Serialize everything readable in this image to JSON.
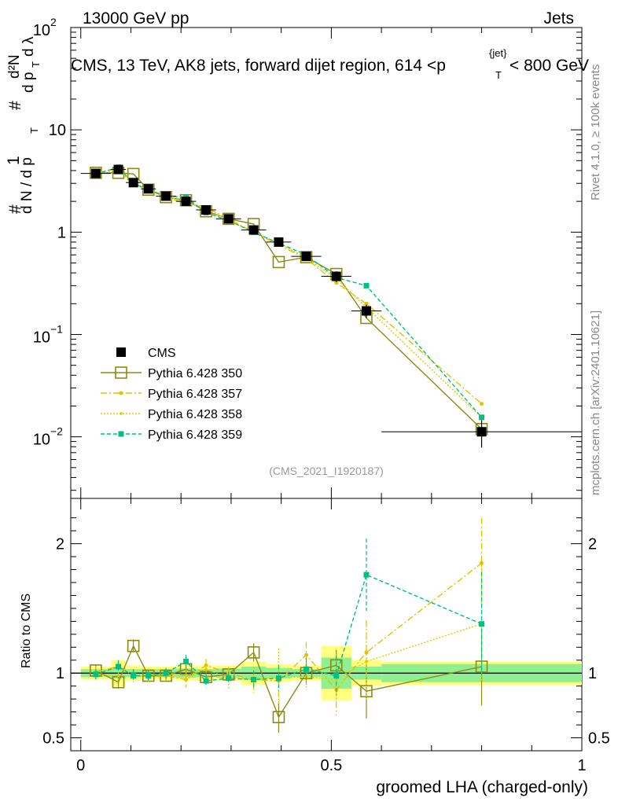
{
  "header": {
    "left": "13000 GeV pp",
    "right": "Jets"
  },
  "chart_data": [
    {
      "type": "line",
      "yscale": "log",
      "title": "CMS, 13 TeV, AK8 jets, forward dijet region, 614 <p_T^{jet}< 800 GeV",
      "title_parts": {
        "main": "CMS, 13 TeV, AK8 jets, forward dijet region, 614 <p",
        "sub": "T",
        "sup": "{jet}",
        "tail": "< 800 GeV"
      },
      "ylabel": "1 / (dN/dp_T) · d²N / (dp_T dλ)",
      "ylabel_parts": {
        "hash": "#",
        "one": "1",
        "dn": "d N / d p",
        "t": "T",
        "d2n": "d²N",
        "dp": "d p",
        "dl": "d λ"
      },
      "xlim": [
        -0.02,
        1.0
      ],
      "ylim": [
        0.0025,
        100
      ],
      "yticks": [
        {
          "v": 0.01,
          "base": "10",
          "exp": "−2"
        },
        {
          "v": 0.1,
          "base": "10",
          "exp": "−1"
        },
        {
          "v": 1,
          "label": "1"
        },
        {
          "v": 10,
          "label": "10"
        },
        {
          "v": 100,
          "base": "10",
          "exp": "2"
        }
      ],
      "x": [
        0.03,
        0.075,
        0.105,
        0.135,
        0.17,
        0.21,
        0.25,
        0.295,
        0.345,
        0.395,
        0.45,
        0.51,
        0.57,
        0.8
      ],
      "xerr": [
        0.03,
        0.015,
        0.015,
        0.015,
        0.02,
        0.02,
        0.02,
        0.025,
        0.025,
        0.025,
        0.03,
        0.03,
        0.03,
        0.2
      ],
      "series": [
        {
          "name": "CMS",
          "color": "#000000",
          "marker": "square-filled",
          "values": [
            3.75,
            4.1,
            3.05,
            2.65,
            2.25,
            2.0,
            1.65,
            1.35,
            1.05,
            0.8,
            0.58,
            0.37,
            0.17,
            0.0112
          ],
          "err_frac": [
            0.05,
            0.05,
            0.06,
            0.06,
            0.06,
            0.06,
            0.07,
            0.07,
            0.08,
            0.09,
            0.1,
            0.12,
            0.15,
            0.3
          ]
        },
        {
          "name": "Pythia 6.428 350",
          "color": "#8a8a14",
          "marker": "square-open",
          "dash": "",
          "values": [
            3.8,
            3.8,
            3.7,
            2.6,
            2.2,
            2.05,
            1.6,
            1.35,
            1.2,
            0.51,
            0.57,
            0.39,
            0.145,
            0.0119
          ]
        },
        {
          "name": "Pythia 6.428 357",
          "color": "#e6c000",
          "marker": "star",
          "dash": "8,3,2,3",
          "values": [
            3.8,
            4.2,
            3.0,
            2.55,
            2.2,
            1.9,
            1.75,
            1.35,
            1.0,
            0.75,
            0.55,
            0.32,
            0.2,
            0.021
          ]
        },
        {
          "name": "Pythia 6.428 358",
          "color": "#d2d200",
          "marker": "dot",
          "dash": "2,2",
          "values": [
            3.7,
            4.0,
            3.0,
            2.6,
            2.25,
            1.95,
            1.7,
            1.3,
            1.0,
            0.78,
            0.56,
            0.35,
            0.185,
            0.0155
          ]
        },
        {
          "name": "Pythia 6.428 359",
          "color": "#00c080",
          "marker": "square-small",
          "dash": "5,3",
          "values": [
            3.7,
            4.3,
            3.0,
            2.6,
            2.25,
            2.2,
            1.55,
            1.3,
            1.0,
            0.78,
            0.6,
            0.36,
            0.3,
            0.0155
          ]
        }
      ],
      "legend": [
        "CMS",
        "Pythia 6.428 350",
        "Pythia 6.428 357",
        "Pythia 6.428 358",
        "Pythia 6.428 359"
      ],
      "legend_position": "bottom-left",
      "annotation": "(CMS_2021_I1920187)"
    },
    {
      "type": "line",
      "xlabel": "groomed LHA (charged-only)",
      "ylabel": "Ratio to CMS",
      "xlim": [
        -0.02,
        1.0
      ],
      "ylim": [
        0.4,
        2.35
      ],
      "xticks": [
        {
          "v": 0,
          "label": "0"
        },
        {
          "v": 0.5,
          "label": "0.5"
        },
        {
          "v": 1,
          "label": "1"
        }
      ],
      "yticks": [
        {
          "v": 0.5,
          "label": "0.5"
        },
        {
          "v": 1,
          "label": "1"
        },
        {
          "v": 2,
          "label": "2"
        }
      ],
      "band_inner_frac": [
        0.03,
        0.04,
        0.03,
        0.03,
        0.03,
        0.035,
        0.03,
        0.035,
        0.05,
        0.04,
        0.03,
        0.12,
        0.05,
        0.07
      ],
      "band_outer_frac": [
        0.05,
        0.1,
        0.06,
        0.05,
        0.05,
        0.06,
        0.06,
        0.06,
        0.09,
        0.07,
        0.06,
        0.21,
        0.1,
        0.09
      ],
      "series": [
        {
          "name": "Pythia 6.428 350",
          "values": [
            1.02,
            0.93,
            1.21,
            0.98,
            0.98,
            1.03,
            0.97,
            0.99,
            1.16,
            0.66,
            1.0,
            1.06,
            0.86,
            1.05
          ],
          "err": [
            0.04,
            0.05,
            0.05,
            0.04,
            0.04,
            0.04,
            0.05,
            0.05,
            0.07,
            0.12,
            0.09,
            0.12,
            0.21,
            0.3
          ]
        },
        {
          "name": "Pythia 6.428 357",
          "values": [
            1.01,
            1.05,
            0.98,
            0.97,
            0.98,
            0.95,
            1.06,
            1.0,
            0.95,
            0.94,
            1.14,
            0.87,
            1.16,
            1.85
          ],
          "err": [
            0.04,
            0.05,
            0.05,
            0.04,
            0.04,
            0.06,
            0.05,
            0.05,
            0.07,
            0.12,
            0.1,
            0.2,
            0.25,
            0.35
          ]
        },
        {
          "name": "Pythia 6.428 358",
          "values": [
            0.99,
            0.98,
            0.98,
            0.98,
            1.0,
            0.98,
            1.03,
            0.96,
            0.95,
            0.97,
            0.97,
            0.95,
            1.09,
            1.38
          ],
          "err": [
            0.04,
            0.05,
            0.05,
            0.04,
            0.04,
            0.05,
            0.06,
            0.08,
            0.1,
            0.22,
            0.1,
            0.2,
            0.3,
            0.45
          ]
        },
        {
          "name": "Pythia 6.428 359",
          "values": [
            0.99,
            1.05,
            0.98,
            0.98,
            1.0,
            1.09,
            0.94,
            0.96,
            0.95,
            0.96,
            1.03,
            0.98,
            1.76,
            1.38
          ],
          "err": [
            0.04,
            0.05,
            0.05,
            0.04,
            0.04,
            0.05,
            0.05,
            0.05,
            0.07,
            0.1,
            0.09,
            0.15,
            0.28,
            0.4
          ]
        }
      ]
    }
  ],
  "side_text": {
    "rivet": "Rivet 4.1.0, ≥ 100k events",
    "mcplots": "mcplots.cern.ch [arXiv:2401.10621]"
  }
}
